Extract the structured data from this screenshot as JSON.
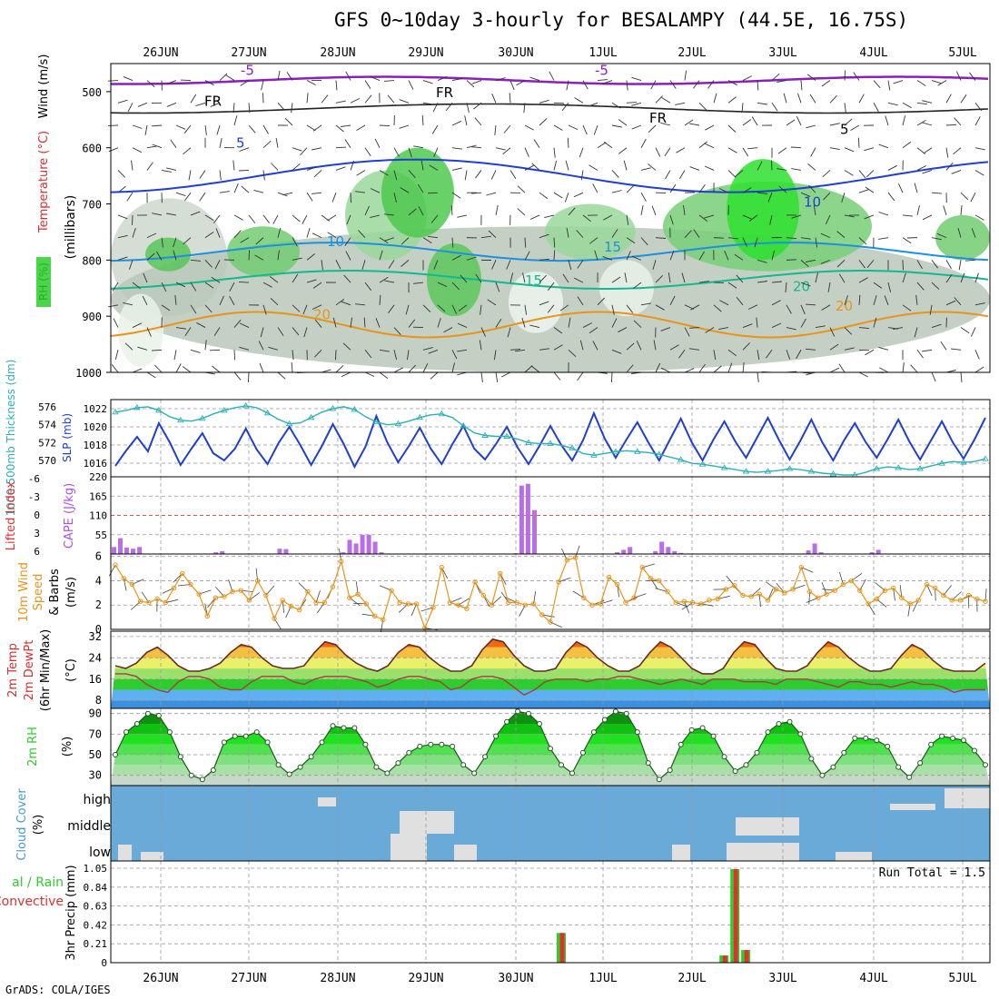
{
  "title": "GFS 0~10day 3-hourly for BESALAMPY (44.5E, 16.75S)",
  "credit": "GrADS: COLA/IGES",
  "dates": [
    "26JUN",
    "27JUN",
    "28JUN",
    "29JUN",
    "30JUN",
    "1JUL",
    "2JUL",
    "3JUL",
    "4JUL",
    "5JUL"
  ],
  "colors": {
    "rh_green": "#2ecc2e",
    "temp_blue": "#1f3fd0",
    "sky_blue": "#6aaad8",
    "orange": "#e8941a",
    "purple": "#8b1fbf"
  },
  "chart_data": [
    {
      "type": "heatmap",
      "name_panel": "upper-air",
      "ylabel_rh": "RH (%)",
      "ylabel_temp": "Temperature (°C)",
      "ylabel_wind": "Wind (m/s)",
      "ylabel_p": "(millibars)",
      "yticks": [
        "500",
        "600",
        "700",
        "800",
        "900",
        "1000"
      ],
      "contour_labels": [
        "-5",
        "-5",
        "FR",
        "FR",
        "FR",
        "5",
        "5",
        "10",
        "10",
        "15",
        "15",
        "20",
        "20",
        "20"
      ]
    },
    {
      "type": "line",
      "name_panel": "thickness-slp",
      "ylabel_left": "1000-500mb Thickness (dm)",
      "ylabel_right": "SLP (mb)",
      "yticks_left": [
        "576",
        "574",
        "572",
        "570"
      ],
      "yticks_right": [
        "1022",
        "1020",
        "1018",
        "1016"
      ],
      "series": [
        {
          "name": "SLP",
          "values": [
            1015.7,
            1017.4,
            1018.9,
            1017.3,
            1020.4,
            1018.3,
            1015.8,
            1017.6,
            1019.3,
            1017.1,
            1016.3,
            1017.6,
            1019.8,
            1017.5,
            1015.9,
            1018.2,
            1020.0,
            1018.0,
            1015.8,
            1017.9,
            1020.3,
            1018.1,
            1015.6,
            1017.8,
            1021.2,
            1018.3,
            1016.1,
            1017.9,
            1019.9,
            1017.6,
            1015.9,
            1018.1,
            1020.1,
            1017.6,
            1016.4,
            1018.1,
            1020.0,
            1017.7,
            1015.9,
            1017.9,
            1020.1,
            1018.0,
            1016.3,
            1018.5,
            1021.5,
            1018.7,
            1016.6,
            1018.6,
            1020.5,
            1018.3,
            1016.3,
            1018.6,
            1020.9,
            1018.3,
            1016.3,
            1018.6,
            1020.6,
            1018.4,
            1016.6,
            1018.8,
            1021.0,
            1018.6,
            1016.4,
            1018.5,
            1020.8,
            1018.3,
            1016.3,
            1018.5,
            1020.4,
            1018.3,
            1016.6,
            1018.6,
            1020.8,
            1018.4,
            1016.4,
            1018.5,
            1020.6,
            1018.3,
            1016.5,
            1018.6,
            1021.0
          ]
        },
        {
          "name": "Thickness",
          "values": [
            575.4,
            575.6,
            575.9,
            576.0,
            575.6,
            574.9,
            574.5,
            574.4,
            574.7,
            575.2,
            575.6,
            575.9,
            576.1,
            575.9,
            575.3,
            574.6,
            574.1,
            574.2,
            574.8,
            575.4,
            575.8,
            576.0,
            575.7,
            574.9,
            574.3,
            574.0,
            574.1,
            574.4,
            574.8,
            575.1,
            575.2,
            574.8,
            573.9,
            573.1,
            572.8,
            572.7,
            572.7,
            572.4,
            572.0,
            571.9,
            571.9,
            571.7,
            571.4,
            570.8,
            570.6,
            570.8,
            571.0,
            571.1,
            571.0,
            570.9,
            570.7,
            570.4,
            570.1,
            569.7,
            569.6,
            569.4,
            569.2,
            569.0,
            568.8,
            568.7,
            568.8,
            568.9,
            569.1,
            569.0,
            568.8,
            568.6,
            568.5,
            568.4,
            568.4,
            568.7,
            569.1,
            569.3,
            569.2,
            569.0,
            569.1,
            569.4,
            569.7,
            569.9,
            569.8,
            569.9,
            570.2
          ]
        }
      ]
    },
    {
      "type": "bar",
      "name_panel": "cape-li",
      "ylabel_left": "Lifted Index",
      "ylabel_right": "CAPE (J/kg)",
      "yticks_left": [
        "-6",
        "-3",
        "0",
        "3",
        "6"
      ],
      "yticks_right": [
        "220",
        "165",
        "110",
        "55"
      ],
      "ylim": [
        0,
        220
      ],
      "series": [
        {
          "name": "CAPE",
          "values": [
            20,
            45,
            18,
            15,
            20,
            0,
            0,
            0,
            0,
            0,
            0,
            0,
            0,
            0,
            0,
            0,
            5,
            8,
            0,
            0,
            0,
            0,
            0,
            0,
            0,
            0,
            15,
            14,
            0,
            0,
            0,
            0,
            0,
            0,
            0,
            0,
            5,
            40,
            30,
            55,
            55,
            35,
            5,
            0,
            0,
            0,
            0,
            0,
            0,
            0,
            0,
            0,
            0,
            0,
            0,
            0,
            0,
            0,
            0,
            0,
            0,
            0,
            0,
            2,
            195,
            200,
            125,
            0,
            0,
            0,
            0,
            0,
            0,
            0,
            0,
            0,
            0,
            0,
            0,
            5,
            12,
            20,
            0,
            0,
            0,
            8,
            35,
            20,
            8,
            3,
            0,
            0,
            0,
            0,
            0,
            0,
            0,
            0,
            0,
            0,
            0,
            0,
            0,
            0,
            0,
            0,
            0,
            0,
            0,
            10,
            30,
            5,
            0,
            0,
            0,
            0,
            0,
            0,
            0,
            5,
            12,
            0,
            0,
            0,
            0,
            0,
            0,
            0,
            0,
            0,
            0,
            0,
            0,
            0,
            0,
            0,
            0,
            0
          ]
        }
      ]
    },
    {
      "type": "line",
      "name_panel": "wind10m",
      "ylabel": "10m Wind Speed (m/s) & Barbs",
      "yticks": [
        "6",
        "4",
        "2",
        "0"
      ],
      "ylim": [
        0,
        6
      ],
      "series": [
        {
          "name": "Wind speed",
          "values": [
            5.3,
            4.2,
            3.7,
            2.3,
            2.2,
            2.5,
            2.2,
            3.4,
            4.6,
            3.7,
            2.9,
            1.1,
            2.6,
            2.7,
            3.1,
            3.2,
            2.4,
            4.0,
            2.8,
            0.9,
            2.4,
            1.9,
            1.6,
            3.1,
            2.2,
            2.2,
            3.5,
            5.6,
            2.6,
            2.9,
            2.1,
            1.1,
            0.8,
            3.2,
            2.2,
            2.1,
            2.1,
            0.1,
            1.8,
            5.1,
            2.2,
            2.0,
            1.7,
            3.9,
            2.8,
            2.0,
            4.6,
            2.2,
            2.2,
            2.0,
            2.1,
            1.2,
            0.6,
            3.9,
            5.7,
            5.9,
            2.6,
            2.0,
            2.1,
            4.3,
            3.7,
            2.2,
            2.6,
            5.1,
            4.2,
            4.0,
            3.1,
            2.2,
            2.3,
            2.2,
            2.1,
            2.4,
            2.5,
            3.3,
            3.6,
            2.8,
            2.7,
            2.9,
            2.4,
            3.3,
            3.0,
            3.3,
            5.1,
            3.1,
            2.6,
            2.9,
            3.2,
            3.7,
            4.0,
            3.2,
            2.1,
            2.5,
            3.2,
            3.4,
            2.6,
            2.1,
            2.4,
            3.7,
            3.4,
            2.8,
            2.4,
            2.4,
            2.8,
            2.5,
            2.3
          ]
        }
      ]
    },
    {
      "type": "area",
      "name_panel": "temperature",
      "ylabel": "2m Temp 2m DewPt (6hr Min/Max) (°C)",
      "yticks": [
        "32",
        "24",
        "16",
        "8"
      ],
      "ylim": [
        5,
        34
      ],
      "series": [
        {
          "name": "Temp",
          "values": [
            21,
            20,
            22,
            26,
            28,
            25,
            21,
            19,
            19,
            20,
            22,
            26,
            29,
            28,
            24,
            21,
            20,
            20,
            21,
            26,
            30,
            29,
            25,
            22,
            20,
            19,
            21,
            26,
            29,
            28,
            24,
            21,
            19,
            19,
            21,
            27,
            31,
            30,
            25,
            21,
            19,
            19,
            20,
            26,
            30,
            28,
            24,
            21,
            19,
            19,
            21,
            26,
            30,
            28,
            24,
            20,
            18,
            18,
            20,
            26,
            30,
            29,
            24,
            20,
            19,
            19,
            21,
            26,
            30,
            28,
            24,
            21,
            19,
            19,
            20,
            25,
            29,
            27,
            23,
            20,
            19,
            19,
            19,
            22
          ]
        },
        {
          "name": "DewPt",
          "values": [
            18,
            18,
            17,
            14,
            12,
            11,
            15,
            17,
            17,
            16,
            13,
            12,
            12,
            15,
            17,
            17,
            17,
            15,
            14,
            16,
            17,
            17,
            17,
            16,
            15,
            13,
            14,
            16,
            17,
            17,
            16,
            15,
            12,
            13,
            16,
            17,
            17,
            16,
            13,
            10,
            12,
            15,
            16,
            16,
            16,
            15,
            16,
            16,
            17,
            17,
            16,
            15,
            14,
            15,
            16,
            15,
            14,
            16,
            16,
            16,
            15,
            15,
            15,
            14,
            16,
            16,
            16,
            15,
            14,
            13,
            15,
            15,
            14,
            14,
            13,
            14,
            15,
            14,
            14,
            13,
            11,
            12,
            12,
            12
          ]
        }
      ]
    },
    {
      "type": "area",
      "name_panel": "rh2m",
      "ylabel": "2m RH (%)",
      "yticks": [
        "90",
        "70",
        "50",
        "30"
      ],
      "ylim": [
        20,
        95
      ],
      "series": [
        {
          "name": "RH",
          "values": [
            50,
            72,
            80,
            90,
            88,
            72,
            48,
            30,
            26,
            35,
            62,
            68,
            68,
            72,
            62,
            40,
            31,
            38,
            48,
            62,
            78,
            76,
            76,
            60,
            38,
            32,
            42,
            52,
            58,
            60,
            60,
            58,
            40,
            32,
            48,
            68,
            82,
            92,
            90,
            80,
            56,
            40,
            32,
            52,
            72,
            84,
            92,
            90,
            72,
            42,
            26,
            35,
            60,
            74,
            76,
            68,
            48,
            34,
            40,
            52,
            72,
            80,
            82,
            70,
            46,
            30,
            38,
            52,
            66,
            66,
            64,
            58,
            38,
            28,
            42,
            60,
            68,
            66,
            64,
            54,
            40
          ]
        }
      ]
    },
    {
      "type": "heatmap",
      "name_panel": "clouds",
      "ylabel": "Cloud Cover (%)",
      "levels": [
        "high",
        "middle",
        "low"
      ]
    },
    {
      "type": "bar",
      "name_panel": "precip",
      "ylabel_left": "Total / Rain Convective",
      "ylabel": "3hr Precip (mm)",
      "yticks": [
        "1.05",
        "0.84",
        "0.63",
        "0.42",
        "0.21",
        "0"
      ],
      "ylim": [
        0,
        1.05
      ],
      "run_total": "Run Total = 1.5",
      "series": [
        {
          "name": "Total",
          "values": [
            0,
            0,
            0,
            0,
            0,
            0,
            0,
            0,
            0,
            0,
            0,
            0,
            0,
            0,
            0,
            0,
            0,
            0,
            0,
            0,
            0,
            0,
            0,
            0,
            0,
            0,
            0,
            0,
            0,
            0,
            0,
            0,
            0,
            0,
            0,
            0,
            0,
            0,
            0,
            0,
            0,
            0.33,
            0,
            0,
            0,
            0,
            0,
            0,
            0,
            0,
            0,
            0,
            0,
            0,
            0,
            0,
            0.08,
            1.04,
            0.14,
            0,
            0,
            0,
            0,
            0,
            0,
            0,
            0,
            0,
            0,
            0,
            0,
            0,
            0,
            0,
            0,
            0,
            0,
            0,
            0,
            0,
            0
          ]
        }
      ]
    }
  ]
}
